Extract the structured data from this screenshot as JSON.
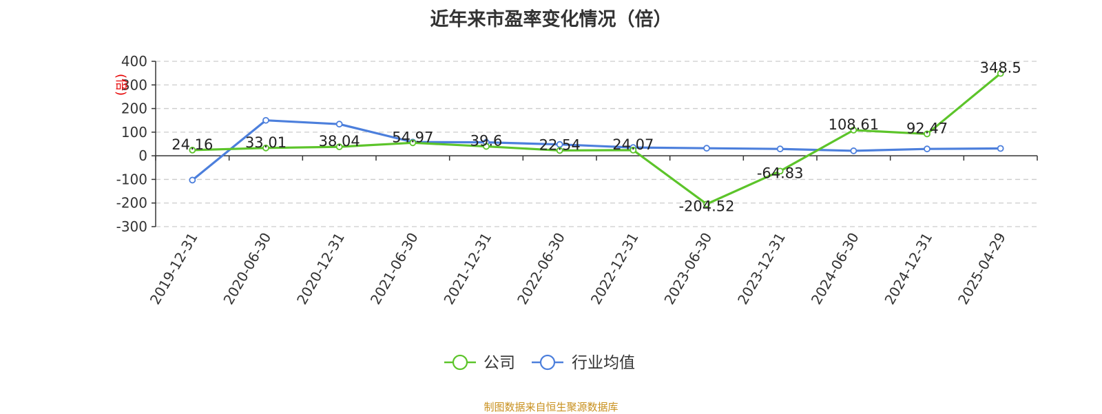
{
  "chart_data": {
    "type": "line",
    "title": "近年来市盈率变化情况（倍）",
    "ylabel": "(倍)",
    "xlabel": "",
    "categories": [
      "2019-12-31",
      "2020-06-30",
      "2020-12-31",
      "2021-06-30",
      "2021-12-31",
      "2022-06-30",
      "2022-12-31",
      "2023-06-30",
      "2023-12-31",
      "2024-06-30",
      "2024-12-31",
      "2025-04-29"
    ],
    "yticks": [
      400,
      300,
      200,
      100,
      0,
      -100,
      -200,
      -300
    ],
    "ylim": [
      -300,
      400
    ],
    "grid": true,
    "legend_position": "bottom",
    "series": [
      {
        "name": "公司",
        "color": "#5cc42a",
        "values": [
          24.16,
          33.01,
          38.04,
          54.97,
          39.6,
          22.54,
          24.07,
          -204.52,
          -64.83,
          108.61,
          92.47,
          348.5
        ],
        "labels": [
          "24.16",
          "33.01",
          "38.04",
          "54.97",
          "39.6",
          "22.54",
          "24.07",
          "-204.52",
          "-64.83",
          "108.61",
          "92.47",
          "348.5"
        ]
      },
      {
        "name": "行业均值",
        "color": "#4c7fdc",
        "values": [
          -103,
          150,
          134,
          58,
          57,
          48,
          35,
          32,
          29,
          21,
          29,
          31
        ]
      }
    ]
  },
  "source_note": "制图数据来自恒生聚源数据库"
}
